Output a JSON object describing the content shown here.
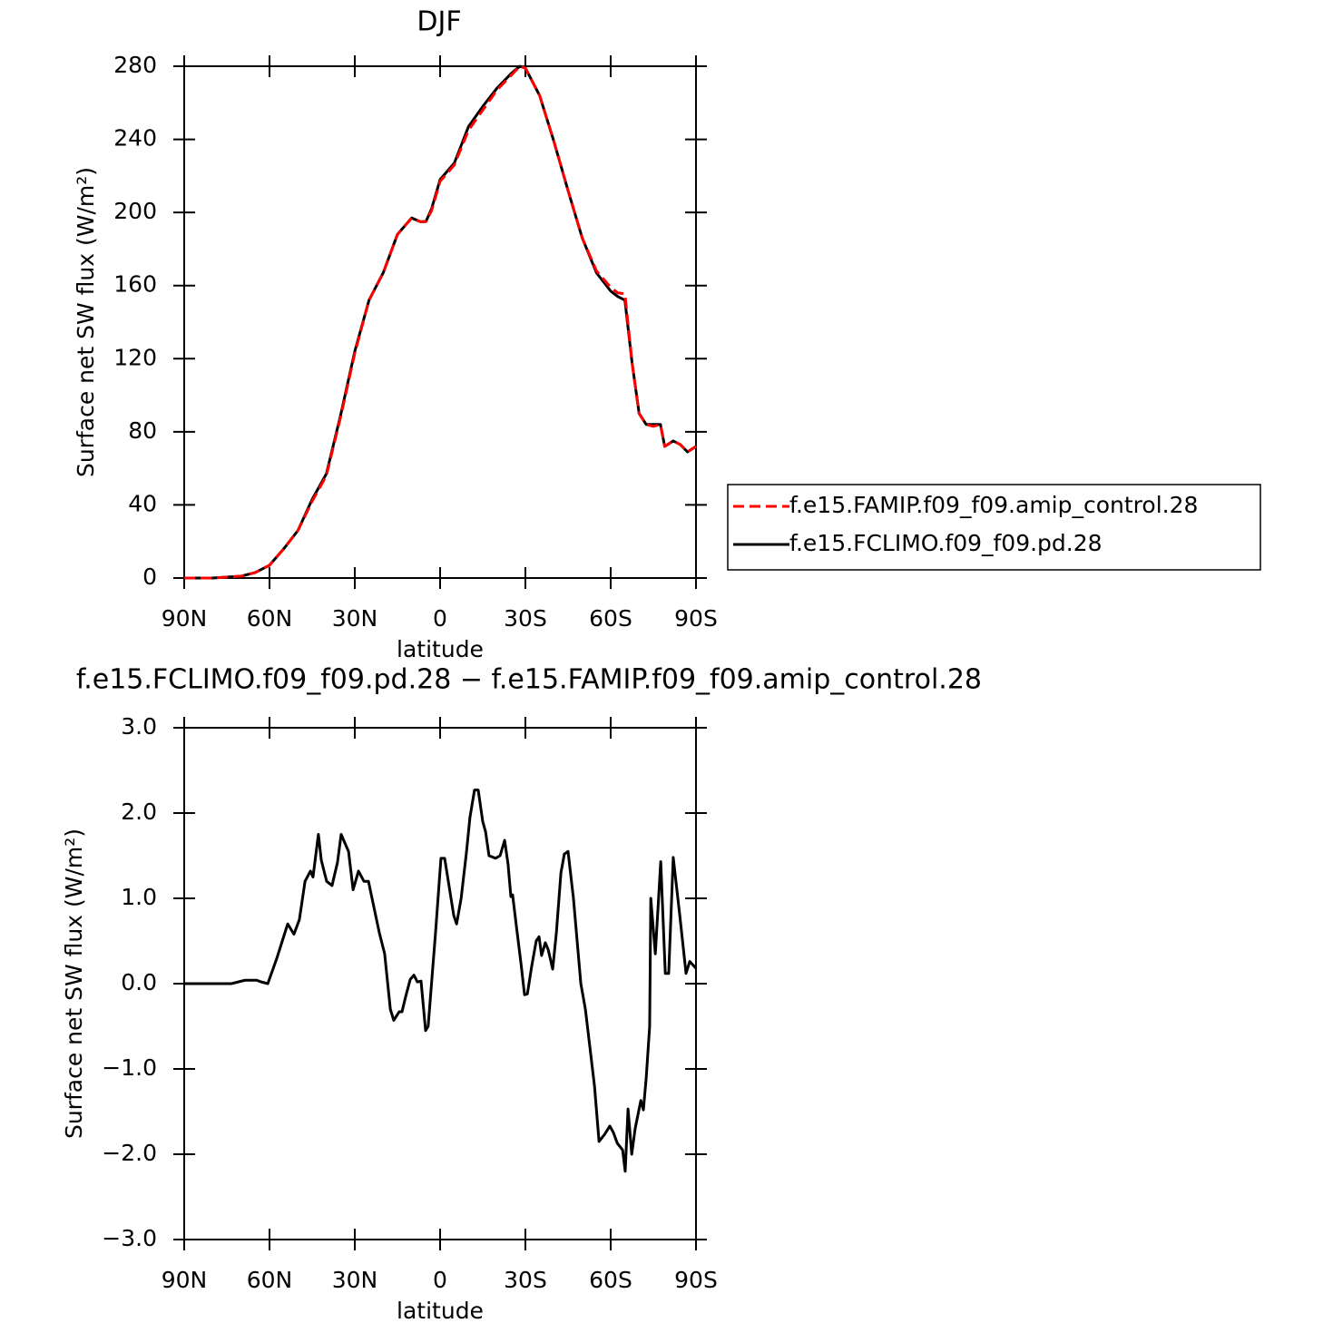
{
  "chart_data": [
    {
      "type": "line",
      "title": "DJF",
      "xlabel": "latitude",
      "ylabel": "Surface net SW flux (W/m²)",
      "x": [
        90,
        80,
        70,
        65,
        60,
        55,
        50,
        45,
        40,
        35,
        30,
        25,
        20,
        15,
        10,
        7,
        5,
        3,
        0,
        -5,
        -10,
        -15,
        -20,
        -25,
        -28,
        -30,
        -35,
        -40,
        -45,
        -50,
        -55,
        -60,
        -62.5,
        -65,
        -67.5,
        -70,
        -72.5,
        -75,
        -77.5,
        -79,
        -82,
        -84.5,
        -87,
        -90
      ],
      "series": [
        {
          "name": "f.e15.FAMIP.f09_f09.amip_control.28",
          "color": "#ff0000",
          "dashed": true,
          "values": [
            0,
            0,
            1,
            3,
            7,
            16,
            26,
            42,
            56,
            88,
            123,
            152,
            167,
            188,
            197,
            195,
            195,
            201,
            217,
            226,
            245,
            256,
            267,
            275,
            280,
            279,
            264,
            239,
            212,
            186,
            168,
            159,
            156,
            155.5,
            118,
            90,
            84,
            83,
            84,
            72,
            75,
            73,
            69,
            72
          ]
        },
        {
          "name": "f.e15.FCLIMO.f09_f09.pd.28",
          "color": "#000000",
          "dashed": false,
          "values": [
            0,
            0,
            1,
            3,
            7,
            16,
            26,
            43,
            57,
            89,
            124,
            152,
            167,
            188,
            197,
            195,
            195,
            202,
            218,
            227,
            247,
            258,
            268,
            276,
            280,
            279,
            264,
            239,
            212,
            186,
            167,
            157,
            154,
            152,
            118,
            90,
            84,
            84,
            84,
            72,
            75,
            73,
            69,
            72
          ]
        }
      ],
      "xlim": [
        90,
        -90
      ],
      "xticks": [
        {
          "value": 90,
          "label": "90N"
        },
        {
          "value": 60,
          "label": "60N"
        },
        {
          "value": 30,
          "label": "30N"
        },
        0,
        {
          "value": -30,
          "label": "30S"
        },
        {
          "value": -60,
          "label": "60S"
        },
        {
          "value": -90,
          "label": "90S"
        }
      ],
      "ylim": [
        0,
        280
      ],
      "yticks": [
        0,
        40,
        80,
        120,
        160,
        200,
        240,
        280
      ],
      "legend": "right"
    },
    {
      "type": "line",
      "title": "f.e15.FCLIMO.f09_f09.pd.28 − f.e15.FAMIP.f09_f09.amip_control.28",
      "xlabel": "latitude",
      "ylabel": "Surface net SW flux (W/m²)",
      "x": [
        90,
        73.4,
        68.6,
        64.5,
        62.9,
        60.6,
        57.4,
        55.5,
        53.6,
        51.4,
        49.5,
        47.5,
        45.6,
        44.7,
        42.8,
        41.8,
        39.9,
        38.0,
        36.1,
        34.8,
        32.2,
        30.6,
        28.7,
        26.8,
        25.2,
        21.4,
        19.5,
        17.5,
        16.3,
        14.4,
        13.4,
        12.1,
        10.5,
        9.2,
        8.0,
        6.7,
        5.1,
        4.2,
        1.6,
        -0.3,
        -1.6,
        -4.8,
        -5.8,
        -7.4,
        -9.3,
        -10.5,
        -12.1,
        -13.4,
        -15.0,
        -16.0,
        -17.2,
        -19.5,
        -21.1,
        -22.7,
        -23.9,
        -24.9,
        -25.5,
        -27.1,
        -28.4,
        -29.7,
        -30.7,
        -32.2,
        -33.8,
        -34.8,
        -35.7,
        -37.0,
        -38.0,
        -39.6,
        -40.9,
        -42.5,
        -43.7,
        -45.0,
        -46.9,
        -49.5,
        -51.1,
        -52.7,
        -54.3,
        -55.9,
        -57.8,
        -59.7,
        -61.0,
        -62.3,
        -64.2,
        -65.1,
        -66.1,
        -67.4,
        -68.6,
        -70.6,
        -71.5,
        -72.5,
        -73.7,
        -74.1,
        -75.7,
        -77.6,
        -79.2,
        -80.4,
        -82.0,
        -84.3,
        -86.5,
        -87.8,
        -90
      ],
      "series": [
        {
          "name": "f.e15.FCLIMO.f09_f09.pd.28 − f.e15.FAMIP.f09_f09.amip_control.28",
          "color": "#000000",
          "dashed": false,
          "values": [
            0,
            0,
            0.04,
            0.04,
            0.02,
            0,
            0.3,
            0.5,
            0.7,
            0.58,
            0.75,
            1.2,
            1.32,
            1.25,
            1.75,
            1.45,
            1.2,
            1.15,
            1.42,
            1.75,
            1.55,
            1.1,
            1.32,
            1.2,
            1.2,
            0.6,
            0.35,
            -0.3,
            -0.43,
            -0.33,
            -0.33,
            -0.15,
            0.05,
            0.1,
            0.02,
            0.03,
            -0.55,
            -0.5,
            0.6,
            1.47,
            1.47,
            0.8,
            0.7,
            1.0,
            1.55,
            1.95,
            2.27,
            2.27,
            1.9,
            1.78,
            1.5,
            1.47,
            1.5,
            1.68,
            1.4,
            1.02,
            1.04,
            0.6,
            0.25,
            -0.13,
            -0.12,
            0.2,
            0.5,
            0.55,
            0.33,
            0.48,
            0.4,
            0.17,
            0.6,
            1.3,
            1.52,
            1.55,
            1.0,
            0,
            -0.3,
            -0.75,
            -1.2,
            -1.85,
            -1.77,
            -1.67,
            -1.75,
            -1.87,
            -1.95,
            -2.2,
            -1.47,
            -2.0,
            -1.7,
            -1.37,
            -1.48,
            -1.1,
            -0.5,
            1.0,
            0.35,
            1.43,
            0.12,
            0.12,
            1.48,
            0.8,
            0.12,
            0.26,
            0.18
          ]
        }
      ],
      "xlim": [
        90,
        -90
      ],
      "xticks": [
        {
          "value": 90,
          "label": "90N"
        },
        {
          "value": 60,
          "label": "60N"
        },
        {
          "value": 30,
          "label": "30N"
        },
        0,
        {
          "value": -30,
          "label": "30S"
        },
        {
          "value": -60,
          "label": "60S"
        },
        {
          "value": -90,
          "label": "90S"
        }
      ],
      "ylim": [
        -3,
        3
      ],
      "yticks": [
        {
          "value": -3,
          "label": "−3.0"
        },
        {
          "value": -2,
          "label": "−2.0"
        },
        {
          "value": -1,
          "label": "−1.0"
        },
        {
          "value": 0,
          "label": "0.0"
        },
        {
          "value": 1,
          "label": "1.0"
        },
        {
          "value": 2,
          "label": "2.0"
        },
        {
          "value": 3,
          "label": "3.0"
        }
      ]
    }
  ]
}
